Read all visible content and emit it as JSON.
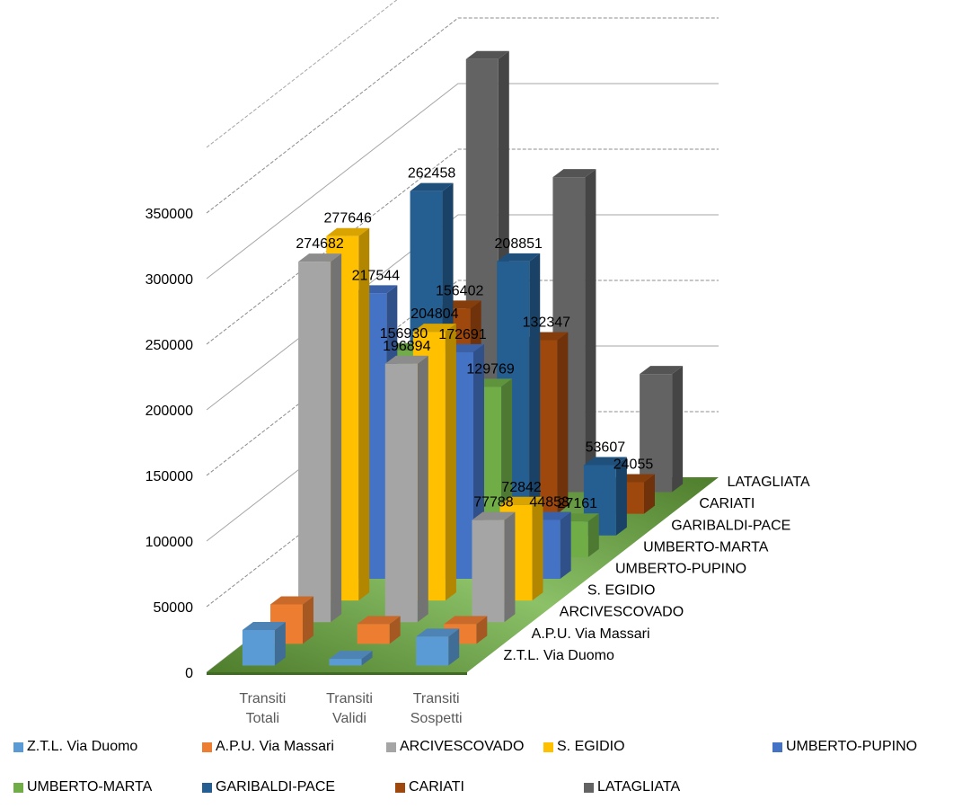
{
  "chart_data": {
    "type": "bar3d",
    "categories": [
      "Transiti Totali",
      "Transiti Validi",
      "Transiti Sospetti"
    ],
    "series": [
      {
        "name": "Z.T.L. Via Duomo",
        "color": "#5b9bd5",
        "values": [
          27000,
          5000,
          22000
        ],
        "data_labels": false
      },
      {
        "name": "A.P.U. Via Massari",
        "color": "#ed7d31",
        "values": [
          30000,
          15000,
          15000
        ],
        "data_labels": false
      },
      {
        "name": "ARCIVESCOVADO",
        "color": "#a5a5a5",
        "values": [
          274682,
          196894,
          77788
        ],
        "data_labels": true
      },
      {
        "name": "S. EGIDIO",
        "color": "#ffc000",
        "values": [
          277646,
          204804,
          72842
        ],
        "data_labels": true
      },
      {
        "name": "UMBERTO-PUPINO",
        "color": "#4472c4",
        "values": [
          217544,
          172691,
          44853
        ],
        "data_labels": true
      },
      {
        "name": "UMBERTO-MARTA",
        "color": "#70ad47",
        "values": [
          156930,
          129769,
          27161
        ],
        "data_labels": true
      },
      {
        "name": "GARIBALDI-PACE",
        "color": "#255e91",
        "values": [
          262458,
          208851,
          53607
        ],
        "data_labels": true
      },
      {
        "name": "CARIATI",
        "color": "#9e480e",
        "values": [
          156402,
          132347,
          24055
        ],
        "data_labels": true
      },
      {
        "name": "LATAGLIATA",
        "color": "#636363",
        "values": [
          330000,
          240000,
          90000
        ],
        "data_labels": false
      }
    ],
    "ylim": [
      0,
      400000
    ],
    "yticks": [
      0,
      50000,
      100000,
      150000,
      200000,
      250000,
      300000,
      350000
    ],
    "grid": true
  }
}
